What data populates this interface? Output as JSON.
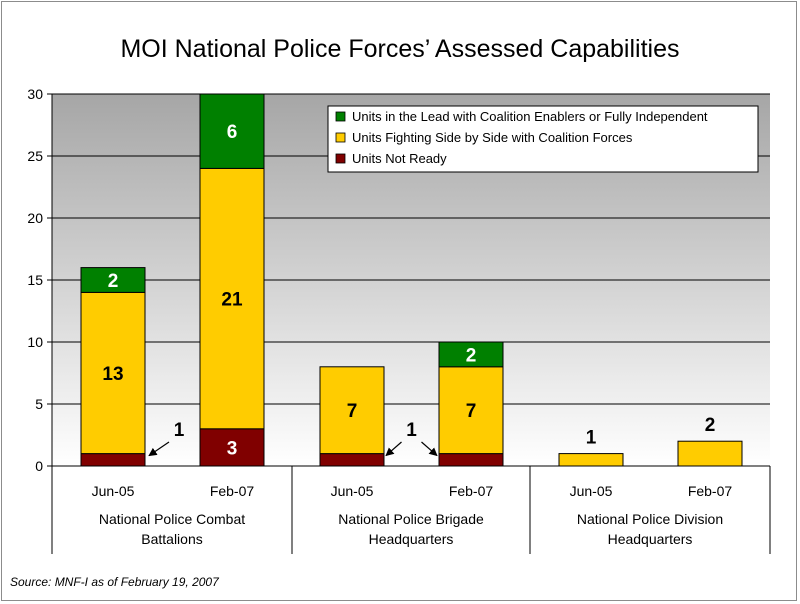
{
  "chart_data": {
    "type": "bar",
    "stacked": true,
    "title": "MOI National Police Forces’ Assessed Capabilities",
    "xlabel": "",
    "ylabel": "",
    "ylim": [
      0,
      30
    ],
    "yticks": [
      0,
      5,
      10,
      15,
      20,
      25,
      30
    ],
    "grid": true,
    "legend_position": "top-right",
    "categories": [
      "Jun-05",
      "Feb-07",
      "Jun-05",
      "Feb-07",
      "Jun-05",
      "Feb-07"
    ],
    "groups": [
      {
        "label_lines": [
          "National Police Combat",
          "Battalions"
        ],
        "categories": [
          0,
          1
        ]
      },
      {
        "label_lines": [
          "National Police Brigade",
          "Headquarters"
        ],
        "categories": [
          2,
          3
        ]
      },
      {
        "label_lines": [
          "National Police Division",
          "Headquarters"
        ],
        "categories": [
          4,
          5
        ]
      }
    ],
    "series": [
      {
        "name": "Units Not Ready",
        "color": "#800000",
        "values": [
          1,
          3,
          1,
          1,
          0,
          0
        ]
      },
      {
        "name": "Units Fighting Side by Side with Coalition Forces",
        "color": "#ffcc00",
        "values": [
          13,
          21,
          7,
          7,
          1,
          2
        ]
      },
      {
        "name": "Units in the Lead with Coalition Enablers or Fully Independent",
        "color": "#008000",
        "values": [
          2,
          6,
          0,
          2,
          0,
          0
        ]
      }
    ],
    "data_labels": [
      {
        "text": "13",
        "category": 0,
        "series": 1,
        "color": "#000000"
      },
      {
        "text": "2",
        "category": 0,
        "series": 2,
        "color": "#ffffff"
      },
      {
        "text": "3",
        "category": 1,
        "series": 0,
        "color": "#ffffff"
      },
      {
        "text": "21",
        "category": 1,
        "series": 1,
        "color": "#000000"
      },
      {
        "text": "6",
        "category": 1,
        "series": 2,
        "color": "#ffffff"
      },
      {
        "text": "7",
        "category": 2,
        "series": 1,
        "color": "#000000"
      },
      {
        "text": "7",
        "category": 3,
        "series": 1,
        "color": "#000000"
      },
      {
        "text": "2",
        "category": 3,
        "series": 2,
        "color": "#ffffff"
      },
      {
        "text": "1",
        "category": 4,
        "series": 1,
        "color": "#000000",
        "position": "above"
      },
      {
        "text": "2",
        "category": 5,
        "series": 1,
        "color": "#000000",
        "position": "above"
      }
    ],
    "annotations": [
      {
        "text": "1",
        "arrows_to": [
          0
        ]
      },
      {
        "text": "1",
        "arrows_to": [
          2,
          3
        ]
      }
    ],
    "source": "Source: MNF-I as of February 19, 2007"
  }
}
